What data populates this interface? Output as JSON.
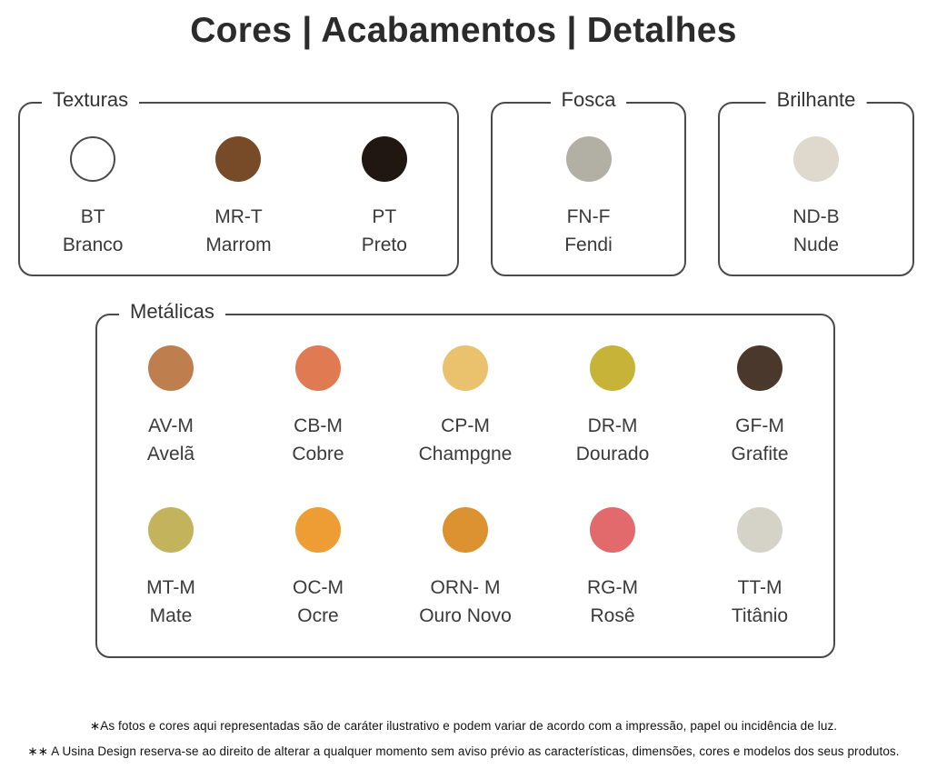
{
  "title": "Cores | Acabamentos | Detalhes",
  "accent_colors": {
    "border": "#4a4a4a",
    "text": "#3a3a3a",
    "title": "#2b2b2b"
  },
  "groups": {
    "texturas": {
      "label": "Texturas",
      "swatches": [
        {
          "code": "BT",
          "name": "Branco",
          "color": "#ffffff"
        },
        {
          "code": "MR-T",
          "name": "Marrom",
          "color": "#774b28"
        },
        {
          "code": "PT",
          "name": "Preto",
          "color": "#201712"
        }
      ]
    },
    "fosca": {
      "label": "Fosca",
      "swatches": [
        {
          "code": "FN-F",
          "name": "Fendi",
          "color": "#b2b0a4"
        }
      ]
    },
    "brilhante": {
      "label": "Brilhante",
      "swatches": [
        {
          "code": "ND-B",
          "name": "Nude",
          "color": "#ded9cc"
        }
      ]
    },
    "metalicas": {
      "label": "Metálicas",
      "row1": [
        {
          "code": "AV-M",
          "name": "Avelã",
          "color": "#bf7e4e"
        },
        {
          "code": "CB-M",
          "name": "Cobre",
          "color": "#e07a52"
        },
        {
          "code": "CP-M",
          "name": "Champgne",
          "color": "#eac26d"
        },
        {
          "code": "DR-M",
          "name": "Dourado",
          "color": "#c6b338"
        },
        {
          "code": "GF-M",
          "name": "Grafite",
          "color": "#4b382c"
        }
      ],
      "row2": [
        {
          "code": "MT-M",
          "name": "Mate",
          "color": "#c2b35c"
        },
        {
          "code": "OC-M",
          "name": "Ocre",
          "color": "#ee9d34"
        },
        {
          "code": "ORN- M",
          "name": "Ouro Novo",
          "color": "#dc9231"
        },
        {
          "code": "RG-M",
          "name": "Rosê",
          "color": "#e36a6c"
        },
        {
          "code": "TT-M",
          "name": "Titânio",
          "color": "#d5d3c7"
        }
      ]
    }
  },
  "footnotes": [
    "∗As fotos e cores aqui representadas são de caráter ilustrativo e podem variar de acordo com a impressão, papel ou incidência de luz.",
    "∗∗ A Usina Design reserva-se ao direito de alterar a qualquer momento sem  aviso prévio  as características, dimensões, cores e modelos dos seus produtos."
  ]
}
